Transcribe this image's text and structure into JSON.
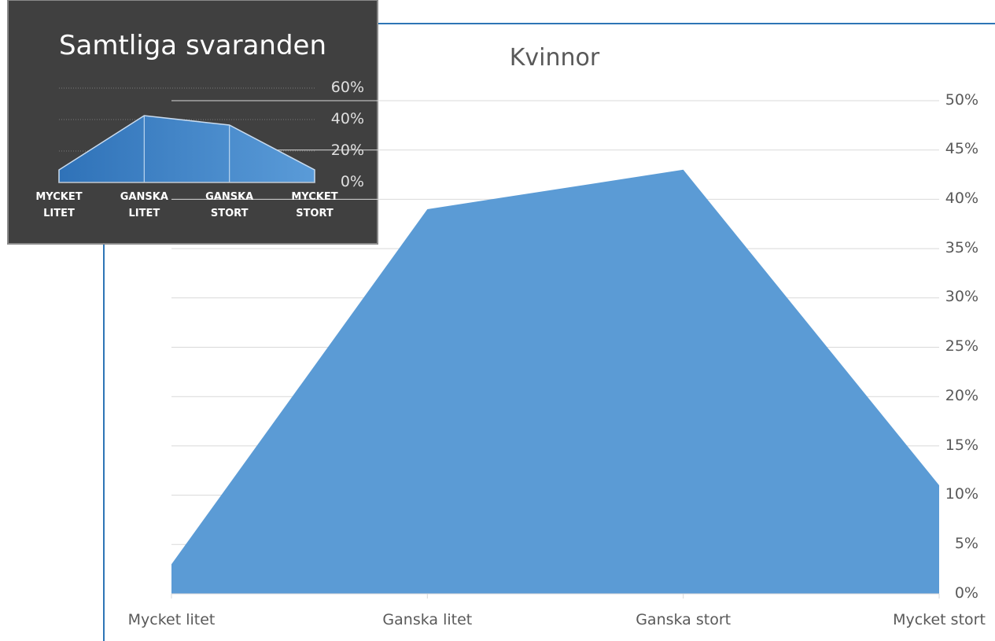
{
  "chart_data": [
    {
      "type": "area",
      "title": "Kvinnor",
      "categories": [
        "Mycket litet",
        "Ganska litet",
        "Ganska stort",
        "Mycket stort"
      ],
      "values": [
        3,
        39,
        43,
        11
      ],
      "color": "#5b9bd5",
      "ylim": [
        0,
        50
      ],
      "yticks": [
        {
          "value": 0,
          "label": "0%"
        },
        {
          "value": 5,
          "label": "5%"
        },
        {
          "value": 10,
          "label": "10%"
        },
        {
          "value": 15,
          "label": "15%"
        },
        {
          "value": 20,
          "label": "20%"
        },
        {
          "value": 25,
          "label": "25%"
        },
        {
          "value": 30,
          "label": "30%"
        },
        {
          "value": 35,
          "label": "35%"
        },
        {
          "value": 40,
          "label": "40%"
        },
        {
          "value": 45,
          "label": "45%"
        },
        {
          "value": 50,
          "label": "50%"
        }
      ],
      "grid": true
    },
    {
      "type": "area",
      "title": "Samtliga svaranden",
      "categories": [
        "MYCKET LITET",
        "GANSKA LITET",
        "GANSKA STORT",
        "MYCKET STORT"
      ],
      "values": [
        8,
        42.5,
        36.5,
        8
      ],
      "color": "#3a7fc4",
      "ylim": [
        0,
        60
      ],
      "yticks": [
        {
          "value": 0,
          "label": "0%"
        },
        {
          "value": 20,
          "label": "20%"
        },
        {
          "value": 40,
          "label": "40%"
        },
        {
          "value": 60,
          "label": "60%"
        }
      ],
      "grid": true
    }
  ]
}
